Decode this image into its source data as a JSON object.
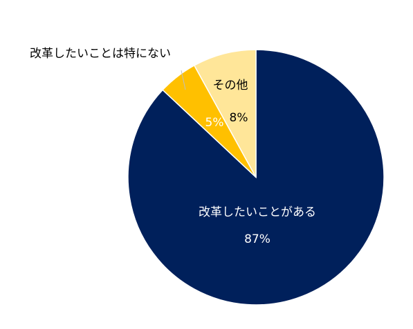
{
  "chart_data": {
    "type": "pie",
    "slices": [
      {
        "label": "改革したいことがある",
        "value": 87,
        "value_label": "87%",
        "color": "#00205B",
        "text_color": "#ffffff"
      },
      {
        "label": "改革したいことは特にない",
        "value": 5,
        "value_label": "5%",
        "color": "#FFC000",
        "text_color": "#ffffff"
      },
      {
        "label": "その他",
        "value": 8,
        "value_label": "8%",
        "color": "#FFE699",
        "text_color": "#000000"
      }
    ],
    "start_angle_deg": 0,
    "direction": "clockwise",
    "legend": "none"
  }
}
